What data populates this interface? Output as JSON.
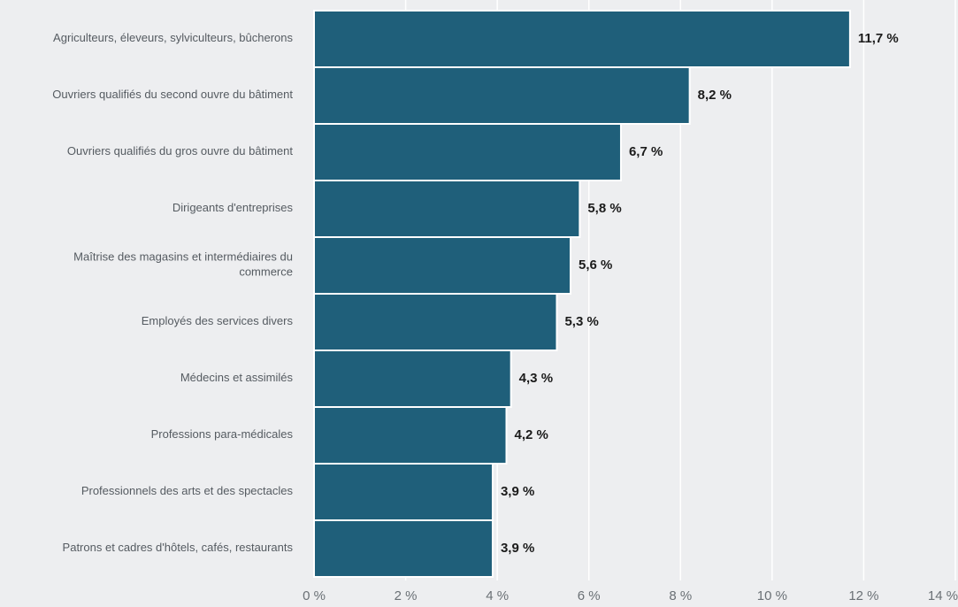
{
  "chart_data": {
    "type": "bar",
    "orientation": "horizontal",
    "title": "",
    "xlabel": "",
    "ylabel": "",
    "categories": [
      "Agriculteurs, éleveurs, sylviculteurs, bûcherons",
      "Ouvriers qualifiés du second ouvre du bâtiment",
      "Ouvriers qualifiés du gros ouvre du bâtiment",
      "Dirigeants d'entreprises",
      "Maîtrise des magasins et intermédiaires du commerce",
      "Employés des services divers",
      "Médecins et assimilés",
      "Professions para-médicales",
      "Professionnels des arts et des spectacles",
      "Patrons et cadres d'hôtels, cafés, restaurants"
    ],
    "category_lines": [
      [
        "Agriculteurs, éleveurs, sylviculteurs, bûcherons"
      ],
      [
        "Ouvriers qualifiés du second ouvre du bâtiment"
      ],
      [
        "Ouvriers qualifiés du gros ouvre du bâtiment"
      ],
      [
        "Dirigeants d'entreprises"
      ],
      [
        "Maîtrise des magasins et intermédiaires du",
        "commerce"
      ],
      [
        "Employés des services divers"
      ],
      [
        "Médecins et assimilés"
      ],
      [
        "Professions para-médicales"
      ],
      [
        "Professionnels des arts et des spectacles"
      ],
      [
        "Patrons et cadres d'hôtels, cafés, restaurants"
      ]
    ],
    "values": [
      11.7,
      8.2,
      6.7,
      5.8,
      5.6,
      5.3,
      4.3,
      4.2,
      3.9,
      3.9
    ],
    "value_labels": [
      "11,7 %",
      "8,2 %",
      "6,7 %",
      "5,8 %",
      "5,6 %",
      "5,3 %",
      "4,3 %",
      "4,2 %",
      "3,9 %",
      "3,9 %"
    ],
    "xlim": [
      0,
      14
    ],
    "x_ticks": [
      0,
      2,
      4,
      6,
      8,
      10,
      12,
      14
    ],
    "x_tick_labels": [
      "0 %",
      "2 %",
      "4 %",
      "6 %",
      "8 %",
      "10 %",
      "12 %",
      "14 %"
    ],
    "grid": true,
    "legend": "none",
    "colors": {
      "bar": "#1f5f7a",
      "background": "#edeef0",
      "grid": "#ffffff"
    }
  }
}
